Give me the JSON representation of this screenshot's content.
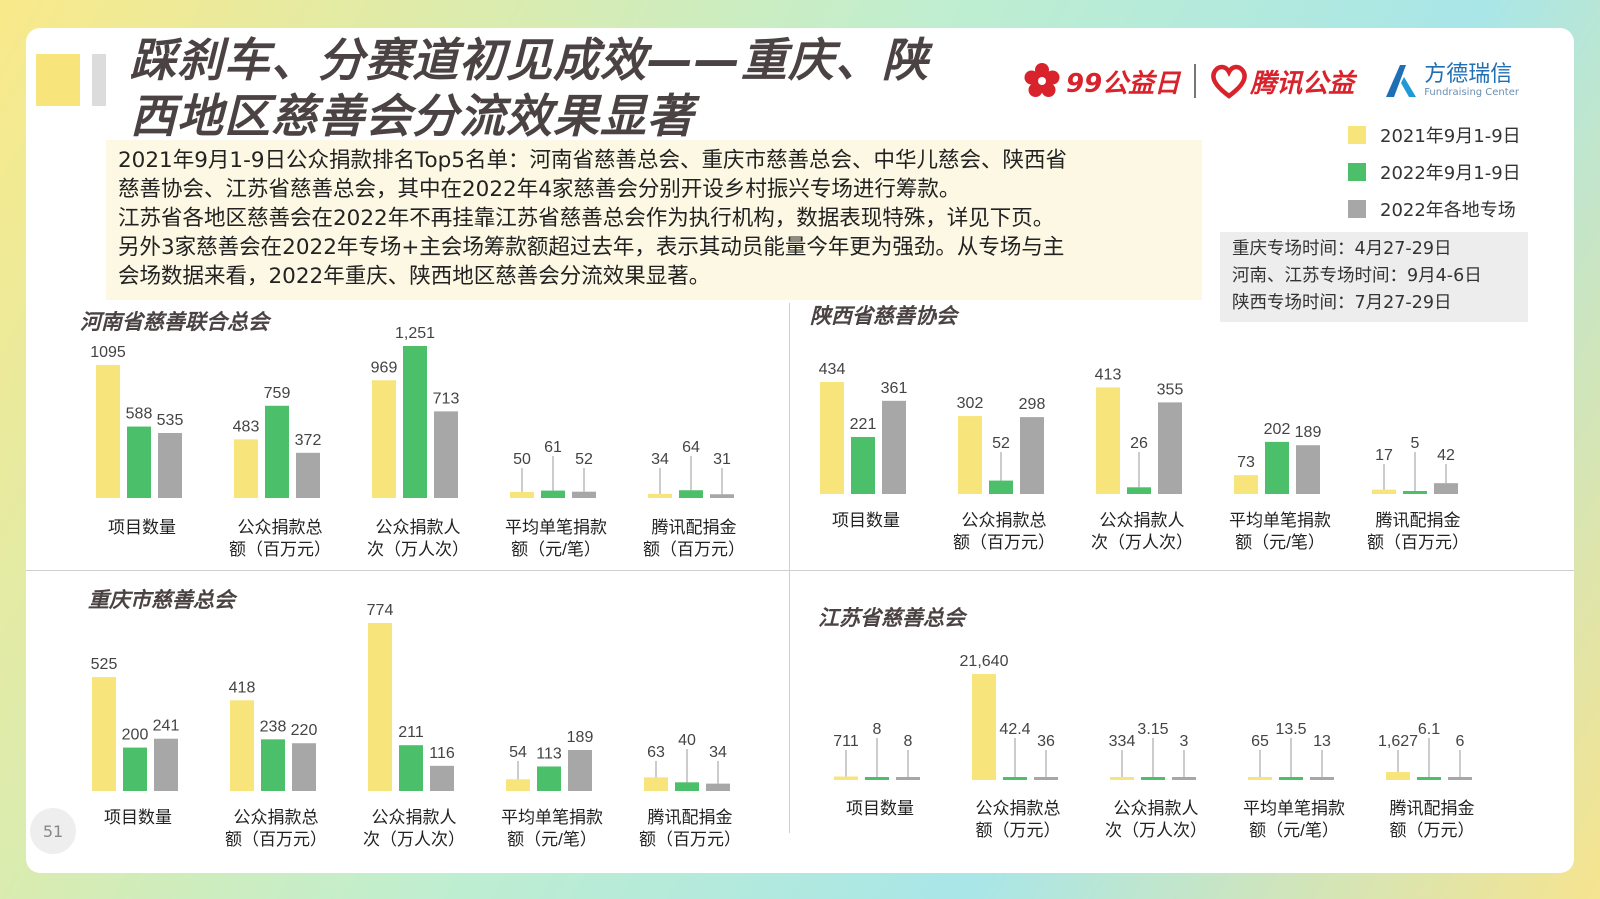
{
  "title_line1": "踩刹车、分赛道初见成效——重庆、陕",
  "title_line2": "西地区慈善会分流效果显著",
  "logos": {
    "logo1_text": "99公益日",
    "logo2_text": "腾讯公益",
    "logo3_text": "方德瑞信",
    "logo3_sub": "Fundraising Center"
  },
  "colors": {
    "y2021": "#f7e57c",
    "g2022": "#4cbf6a",
    "special2022": "#a7a7a7"
  },
  "legend": [
    "2021年9月1-9日",
    "2022年9月1-9日",
    "2022年各地专场"
  ],
  "notes": [
    "重庆专场时间：4月27-29日",
    "河南、江苏专场时间：9月4-6日",
    "陕西专场时间：7月27-29日"
  ],
  "summary": [
    "2021年9月1-9日公众捐款排名Top5名单：河南省慈善总会、重庆市慈善总会、中华儿慈会、陕西省",
    "慈善协会、江苏省慈善总会，其中在2022年4家慈善会分别开设乡村振兴专场进行筹款。",
    "江苏省各地区慈善会在2022年不再挂靠江苏省慈善总会作为执行机构，数据表现特殊，详见下页。",
    "另外3家慈善会在2022年专场+主会场筹款额超过去年，表示其动员能量今年更为强劲。从专场与主",
    "会场数据来看，2022年重庆、陕西地区慈善会分流效果显著。"
  ],
  "page_number": "51",
  "chart_data": [
    {
      "type": "bar",
      "title": "河南省慈善联合总会",
      "categories": [
        "项目数量",
        "公众捐款总额（百万元）",
        "公众捐款人次（万人次）",
        "平均单笔捐款额（元/笔）",
        "腾讯配捐金额（百万元）"
      ],
      "category_lines": [
        [
          "项目数量"
        ],
        [
          "公众捐款总",
          "额（百万元）"
        ],
        [
          "公众捐款人",
          "次（万人次）"
        ],
        [
          "平均单笔捐款",
          "额（元/笔）"
        ],
        [
          "腾讯配捐金",
          "额（百万元）"
        ]
      ],
      "series": [
        {
          "name": "2021年9月1-9日",
          "values": [
            1095,
            483,
            969,
            50,
            34
          ],
          "labels": [
            "1095",
            "483",
            "969",
            "50",
            "34"
          ]
        },
        {
          "name": "2022年9月1-9日",
          "values": [
            588,
            759,
            1251,
            61,
            64
          ],
          "labels": [
            "588",
            "759",
            "1,251",
            "61",
            "64"
          ]
        },
        {
          "name": "2022年各地专场",
          "values": [
            535,
            372,
            713,
            52,
            31
          ],
          "labels": [
            "535",
            "372",
            "713",
            "52",
            "31"
          ]
        }
      ]
    },
    {
      "type": "bar",
      "title": "陕西省慈善协会",
      "categories": [
        "项目数量",
        "公众捐款总额（百万元）",
        "公众捐款人次（万人次）",
        "平均单笔捐款额（元/笔）",
        "腾讯配捐金额（百万元）"
      ],
      "category_lines": [
        [
          "项目数量"
        ],
        [
          "公众捐款总",
          "额（百万元）"
        ],
        [
          "公众捐款人",
          "次（万人次）"
        ],
        [
          "平均单笔捐款",
          "额（元/笔）"
        ],
        [
          "腾讯配捐金",
          "额（百万元）"
        ]
      ],
      "series": [
        {
          "name": "2021年9月1-9日",
          "values": [
            434,
            302,
            413,
            73,
            17
          ],
          "labels": [
            "434",
            "302",
            "413",
            "73",
            "17"
          ]
        },
        {
          "name": "2022年9月1-9日",
          "values": [
            221,
            52,
            26,
            202,
            5
          ],
          "labels": [
            "221",
            "52",
            "26",
            "202",
            "5"
          ]
        },
        {
          "name": "2022年各地专场",
          "values": [
            361,
            298,
            355,
            189,
            42
          ],
          "labels": [
            "361",
            "298",
            "355",
            "189",
            "42"
          ]
        }
      ]
    },
    {
      "type": "bar",
      "title": "重庆市慈善总会",
      "categories": [
        "项目数量",
        "公众捐款总额（百万元）",
        "公众捐款人次（万人次）",
        "平均单笔捐款额（元/笔）",
        "腾讯配捐金额（百万元）"
      ],
      "category_lines": [
        [
          "项目数量"
        ],
        [
          "公众捐款总",
          "额（百万元）"
        ],
        [
          "公众捐款人",
          "次（万人次）"
        ],
        [
          "平均单笔捐款",
          "额（元/笔）"
        ],
        [
          "腾讯配捐金",
          "额（百万元）"
        ]
      ],
      "series": [
        {
          "name": "2021年9月1-9日",
          "values": [
            525,
            418,
            774,
            54,
            63
          ],
          "labels": [
            "525",
            "418",
            "774",
            "54",
            "63"
          ]
        },
        {
          "name": "2022年9月1-9日",
          "values": [
            200,
            238,
            211,
            113,
            40
          ],
          "labels": [
            "200",
            "238",
            "211",
            "113",
            "40"
          ]
        },
        {
          "name": "2022年各地专场",
          "values": [
            241,
            220,
            116,
            189,
            34
          ],
          "labels": [
            "241",
            "220",
            "116",
            "189",
            "34"
          ]
        }
      ]
    },
    {
      "type": "bar",
      "title": "江苏省慈善总会",
      "categories": [
        "项目数量",
        "公众捐款总额（万元）",
        "公众捐款人次（万人次）",
        "平均单笔捐款额（元/笔）",
        "腾讯配捐金额（万元）"
      ],
      "category_lines": [
        [
          "项目数量"
        ],
        [
          "公众捐款总",
          "额（万元）"
        ],
        [
          "公众捐款人",
          "次（万人次）"
        ],
        [
          "平均单笔捐款",
          "额（元/笔）"
        ],
        [
          "腾讯配捐金",
          "额（万元）"
        ]
      ],
      "series": [
        {
          "name": "2021年9月1-9日",
          "values": [
            711,
            21640,
            334,
            65,
            1627
          ],
          "labels": [
            "711",
            "21,640",
            "334",
            "65",
            "1,627"
          ]
        },
        {
          "name": "2022年9月1-9日",
          "values": [
            8,
            42.4,
            3.15,
            13.5,
            6.1
          ],
          "labels": [
            "8",
            "42.4",
            "3.15",
            "13.5",
            "6.1"
          ]
        },
        {
          "name": "2022年各地专场",
          "values": [
            8,
            36,
            3,
            13,
            6
          ],
          "labels": [
            "8",
            "36",
            "3",
            "13",
            "6"
          ]
        }
      ]
    }
  ]
}
